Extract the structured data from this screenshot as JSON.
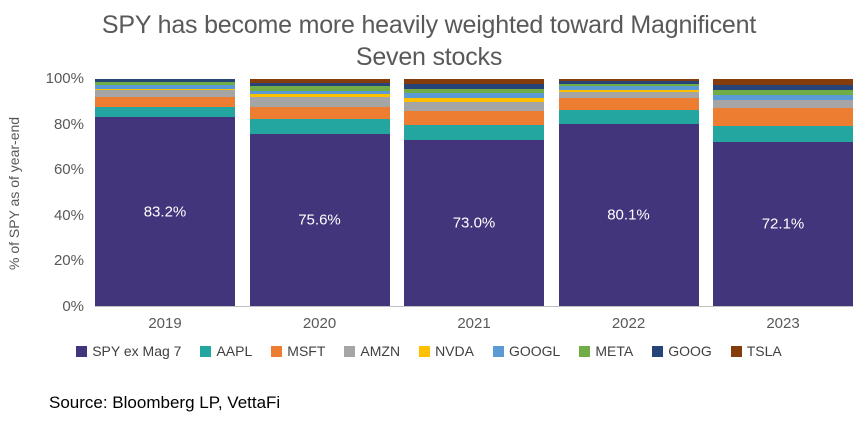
{
  "header": {
    "title_lines": [
      "SPY has become more heavily weighted toward Magnificent",
      "Seven stocks"
    ],
    "title_color": "#595959"
  },
  "chart_data": {
    "type": "bar",
    "subtype": "stacked-100-percent",
    "title": "SPY has become more heavily weighted toward Magnificent Seven stocks",
    "xlabel": "",
    "ylabel": "% of SPY as of year-end",
    "ylim": [
      0,
      100
    ],
    "yticks": [
      "0%",
      "20%",
      "40%",
      "60%",
      "80%",
      "100%"
    ],
    "grid": false,
    "legend_position": "bottom",
    "categories": [
      "2019",
      "2020",
      "2021",
      "2022",
      "2023"
    ],
    "bar_labels": [
      "83.2%",
      "75.6%",
      "73.0%",
      "80.1%",
      "72.1%"
    ],
    "series": [
      {
        "name": "SPY ex Mag 7",
        "color": "#42357B",
        "values": [
          83.2,
          75.6,
          73.0,
          80.1,
          72.1
        ]
      },
      {
        "name": "AAPL",
        "color": "#24A6A0",
        "values": [
          4.5,
          6.7,
          6.8,
          6.1,
          7.3
        ]
      },
      {
        "name": "MSFT",
        "color": "#ED7D31",
        "values": [
          4.5,
          5.3,
          6.3,
          5.6,
          7.9
        ]
      },
      {
        "name": "AMZN",
        "color": "#A5A5A5",
        "values": [
          2.9,
          4.4,
          3.6,
          2.3,
          3.5
        ]
      },
      {
        "name": "NVDA",
        "color": "#FFC000",
        "values": [
          0.7,
          1.2,
          1.8,
          1.1,
          0.0
        ]
      },
      {
        "name": "GOOGL",
        "color": "#5B9BD5",
        "values": [
          1.5,
          1.6,
          2.2,
          1.6,
          2.2
        ]
      },
      {
        "name": "META",
        "color": "#70AD47",
        "values": [
          1.6,
          2.0,
          2.0,
          0.9,
          2.2
        ]
      },
      {
        "name": "GOOG",
        "color": "#264478",
        "values": [
          1.1,
          1.5,
          2.1,
          1.4,
          2.4
        ]
      },
      {
        "name": "TSLA",
        "color": "#843C0C",
        "values": [
          0.0,
          1.7,
          2.2,
          0.9,
          2.4
        ]
      }
    ]
  },
  "footer": {
    "source": "Source: Bloomberg LP, VettaFi"
  }
}
